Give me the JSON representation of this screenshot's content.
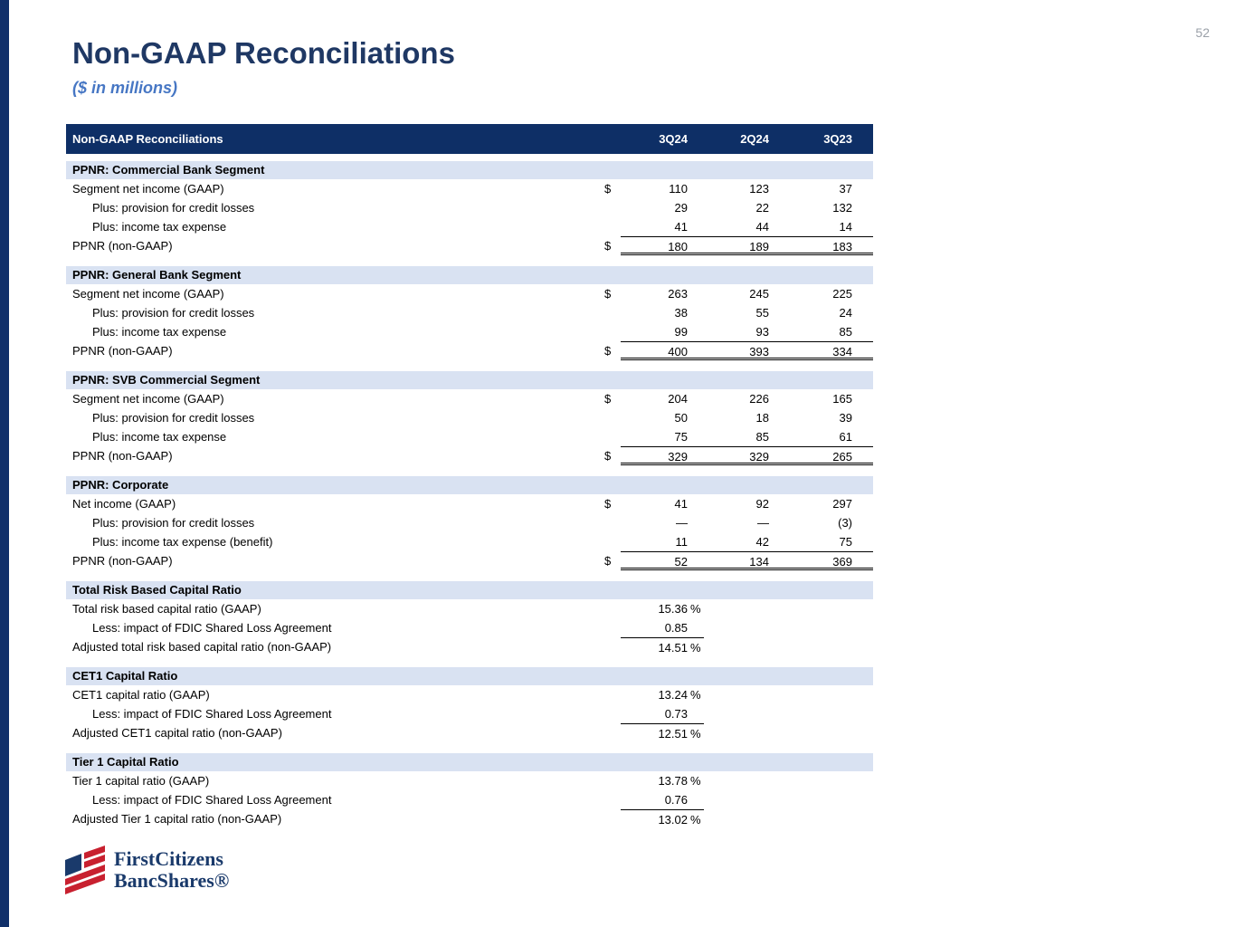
{
  "page": {
    "number": "52",
    "title": "Non-GAAP Reconciliations",
    "subtitle": "($ in millions)"
  },
  "table": {
    "header": {
      "label": "Non-GAAP Reconciliations",
      "columns": [
        "3Q24",
        "2Q24",
        "3Q23"
      ]
    },
    "sections": [
      {
        "title": "PPNR: Commercial Bank Segment",
        "rows": [
          {
            "label": "Segment net income (GAAP)",
            "indent": 0,
            "dollar": "$",
            "values": [
              "110",
              "123",
              "37"
            ],
            "suffix": "",
            "rule": ""
          },
          {
            "label": "Plus: provision for credit losses",
            "indent": 1,
            "dollar": "",
            "values": [
              "29",
              "22",
              "132"
            ],
            "suffix": "",
            "rule": ""
          },
          {
            "label": "Plus: income tax expense",
            "indent": 1,
            "dollar": "",
            "values": [
              "41",
              "44",
              "14"
            ],
            "suffix": "",
            "rule": ""
          },
          {
            "label": "PPNR (non-GAAP)",
            "indent": 0,
            "dollar": "$",
            "values": [
              "180",
              "189",
              "183"
            ],
            "suffix": "",
            "rule": "total"
          }
        ]
      },
      {
        "title": "PPNR: General Bank Segment",
        "rows": [
          {
            "label": "Segment net income (GAAP)",
            "indent": 0,
            "dollar": "$",
            "values": [
              "263",
              "245",
              "225"
            ],
            "suffix": "",
            "rule": ""
          },
          {
            "label": "Plus: provision for credit losses",
            "indent": 1,
            "dollar": "",
            "values": [
              "38",
              "55",
              "24"
            ],
            "suffix": "",
            "rule": ""
          },
          {
            "label": "Plus: income tax expense",
            "indent": 1,
            "dollar": "",
            "values": [
              "99",
              "93",
              "85"
            ],
            "suffix": "",
            "rule": ""
          },
          {
            "label": "PPNR (non-GAAP)",
            "indent": 0,
            "dollar": "$",
            "values": [
              "400",
              "393",
              "334"
            ],
            "suffix": "",
            "rule": "total"
          }
        ]
      },
      {
        "title": "PPNR: SVB Commercial Segment",
        "rows": [
          {
            "label": "Segment net income (GAAP)",
            "indent": 0,
            "dollar": "$",
            "values": [
              "204",
              "226",
              "165"
            ],
            "suffix": "",
            "rule": ""
          },
          {
            "label": "Plus: provision for credit losses",
            "indent": 1,
            "dollar": "",
            "values": [
              "50",
              "18",
              "39"
            ],
            "suffix": "",
            "rule": ""
          },
          {
            "label": "Plus: income tax expense",
            "indent": 1,
            "dollar": "",
            "values": [
              "75",
              "85",
              "61"
            ],
            "suffix": "",
            "rule": ""
          },
          {
            "label": "PPNR (non-GAAP)",
            "indent": 0,
            "dollar": "$",
            "values": [
              "329",
              "329",
              "265"
            ],
            "suffix": "",
            "rule": "total"
          }
        ]
      },
      {
        "title": "PPNR: Corporate",
        "rows": [
          {
            "label": "Net income (GAAP)",
            "indent": 0,
            "dollar": "$",
            "values": [
              "41",
              "92",
              "297"
            ],
            "suffix": "",
            "rule": ""
          },
          {
            "label": "Plus: provision for credit losses",
            "indent": 1,
            "dollar": "",
            "values": [
              "—",
              "—",
              "(3)"
            ],
            "suffix": "",
            "rule": ""
          },
          {
            "label": "Plus: income tax expense (benefit)",
            "indent": 1,
            "dollar": "",
            "values": [
              "11",
              "42",
              "75"
            ],
            "suffix": "",
            "rule": ""
          },
          {
            "label": "PPNR (non-GAAP)",
            "indent": 0,
            "dollar": "$",
            "values": [
              "52",
              "134",
              "369"
            ],
            "suffix": "",
            "rule": "total"
          }
        ]
      },
      {
        "title": "Total Risk Based Capital Ratio",
        "rows": [
          {
            "label": "Total risk based capital ratio (GAAP)",
            "indent": 0,
            "dollar": "",
            "values": [
              "15.36",
              "",
              ""
            ],
            "suffix": "%",
            "rule": ""
          },
          {
            "label": "Less: impact of FDIC Shared Loss Agreement",
            "indent": 1,
            "dollar": "",
            "values": [
              "0.85",
              "",
              ""
            ],
            "suffix": "",
            "rule": ""
          },
          {
            "label": "Adjusted total risk based capital ratio (non-GAAP)",
            "indent": 0,
            "dollar": "",
            "values": [
              "14.51",
              "",
              ""
            ],
            "suffix": "%",
            "rule": "topcol1"
          }
        ]
      },
      {
        "title": "CET1 Capital Ratio",
        "rows": [
          {
            "label": "CET1 capital ratio (GAAP)",
            "indent": 0,
            "dollar": "",
            "values": [
              "13.24",
              "",
              ""
            ],
            "suffix": "%",
            "rule": ""
          },
          {
            "label": "Less: impact of FDIC Shared Loss Agreement",
            "indent": 1,
            "dollar": "",
            "values": [
              "0.73",
              "",
              ""
            ],
            "suffix": "",
            "rule": ""
          },
          {
            "label": "Adjusted CET1 capital ratio (non-GAAP)",
            "indent": 0,
            "dollar": "",
            "values": [
              "12.51",
              "",
              ""
            ],
            "suffix": "%",
            "rule": "topcol1"
          }
        ]
      },
      {
        "title": "Tier 1 Capital Ratio",
        "rows": [
          {
            "label": "Tier 1 capital ratio (GAAP)",
            "indent": 0,
            "dollar": "",
            "values": [
              "13.78",
              "",
              ""
            ],
            "suffix": "%",
            "rule": ""
          },
          {
            "label": "Less: impact of FDIC Shared Loss Agreement",
            "indent": 1,
            "dollar": "",
            "values": [
              "0.76",
              "",
              ""
            ],
            "suffix": "",
            "rule": ""
          },
          {
            "label": "Adjusted Tier 1 capital ratio (non-GAAP)",
            "indent": 0,
            "dollar": "",
            "values": [
              "13.02",
              "",
              ""
            ],
            "suffix": "%",
            "rule": "topcol1"
          }
        ]
      }
    ]
  },
  "logo": {
    "line1": "FirstCitizens",
    "line2": "BancShares®"
  },
  "colors": {
    "header_navy": "#0E2F66",
    "left_strip_navy": "#10306A",
    "title_blue": "#1F3864",
    "accent_blue": "#4777C4",
    "section_header_bg": "#D9E2F2",
    "logo_red": "#C8202F",
    "logo_navy": "#1A3A6B"
  }
}
